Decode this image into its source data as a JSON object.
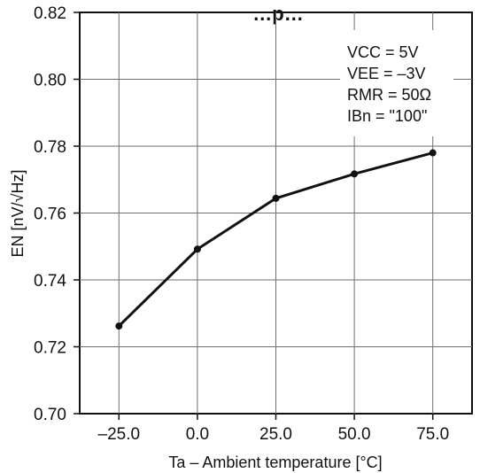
{
  "chart_data": {
    "type": "line",
    "title": "…p…",
    "xlabel": "Ta – Ambient temperature [°C]",
    "ylabel": "EN [nV/√Hz]",
    "x": [
      -25,
      0,
      25,
      50,
      75
    ],
    "series": [
      {
        "values": [
          0.7262,
          0.7492,
          0.7644,
          0.7717,
          0.778
        ]
      }
    ],
    "xlim": [
      -37.5,
      87.5
    ],
    "ylim": [
      0.7,
      0.82
    ],
    "xticks": [
      "–25.0",
      "0.0",
      "25.0",
      "50.0",
      "75.0"
    ],
    "yticks": [
      "0.70",
      "0.72",
      "0.74",
      "0.76",
      "0.78",
      "0.80",
      "0.82"
    ],
    "grid": true,
    "legend_position": "top-right",
    "legend_lines": [
      "VCC = 5V",
      "VEE = –3V",
      "RMR = 50Ω",
      "IBn = \"100\""
    ],
    "colors": {
      "line": "#111111",
      "grid": "#6f6f6f",
      "frame": "#111111"
    }
  }
}
